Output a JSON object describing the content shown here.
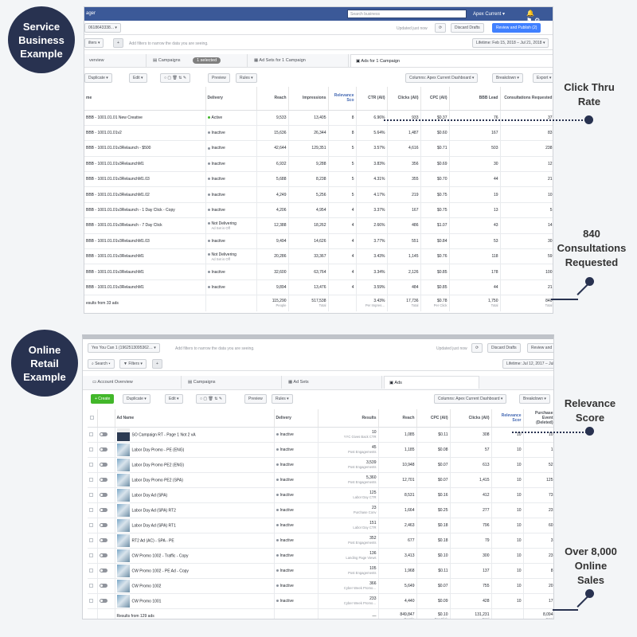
{
  "labels": {
    "service_circle": "Service\nBusiness\nExample",
    "retail_circle": "Online\nRetail\nExample",
    "ctr_callout": "Click Thru\nRate",
    "consult_callout": "840\nConsultations\nRequested",
    "relevance_callout": "Relevance\nScore",
    "sales_callout": "Over 8,000\nOnline\nSales"
  },
  "colors": {
    "navy": "#283250",
    "fb_blue": "#3b5998",
    "accent_blue": "#4080ff",
    "green": "#42b72a"
  },
  "service": {
    "topbar": {
      "app_suffix": "ager",
      "search_placeholder": "Search business",
      "account": "Apex Current ▾",
      "icons": [
        "bell-icon",
        "flag-icon",
        "chat-icon",
        "gear-icon"
      ]
    },
    "toolbar1": {
      "account_id": "0618643338... ▾",
      "updated": "Updated just now",
      "discard": "Discard Drafts",
      "review": "Review and Publish (2)"
    },
    "toolbar2": {
      "filters": "ilters ▾",
      "filter_hint": "Add filters to narrow the data you are seeing.",
      "lifetime": "Lifetime: Feb 15, 2018 – Jul 21, 2018 ▾"
    },
    "tabs": {
      "overview": "verview",
      "campaigns": "Campaigns",
      "selected": "1 selected",
      "adsets": "Ad Sets for 1 Campaign",
      "ads": "Ads for 1 Campaign"
    },
    "toolbar3": {
      "duplicate": "Duplicate ▾",
      "edit": "Edit ▾",
      "preview": "Preview",
      "rules": "Rules ▾",
      "columns": "Columns: Apex Current Dashboard ▾",
      "breakdown": "Breakdown ▾",
      "export": "Export ▾"
    },
    "headers": [
      "me",
      "Delivery",
      "Reach",
      "Impressions",
      "Relevance Sco",
      "CTR (All)",
      "Clicks (All)",
      "CPC (All)",
      "BBB Lead",
      "Consultations Requested"
    ],
    "rows": [
      [
        "BBB - 1001.01.01 New Creative",
        "Active",
        "9,533",
        "13,405",
        "8",
        "6.96%",
        "933",
        "$0.37",
        "76",
        "37"
      ],
      [
        "BBB - 1001.01.01v2",
        "Inactive",
        "15,636",
        "26,344",
        "8",
        "5.64%",
        "1,487",
        "$0.60",
        "167",
        "83"
      ],
      [
        "BBB - 1001.01.01v3Relaunch - $500",
        "Inactive",
        "42,644",
        "129,351",
        "5",
        "3.57%",
        "4,616",
        "$0.71",
        "503",
        "238"
      ],
      [
        "BBB - 1001.01.01v3RelaunchM1",
        "Inactive",
        "6,932",
        "9,288",
        "5",
        "3.83%",
        "356",
        "$0.69",
        "30",
        "12"
      ],
      [
        "BBB - 1001.01.01v3RelaunchM1.03",
        "Inactive",
        "5,688",
        "8,238",
        "5",
        "4.31%",
        "355",
        "$0.70",
        "44",
        "21"
      ],
      [
        "BBB - 1001.01.01v3RelaunchM1.02",
        "Inactive",
        "4,249",
        "5,256",
        "5",
        "4.17%",
        "219",
        "$0.75",
        "19",
        "10"
      ],
      [
        "BBB - 1001.01.01v3Relaunch - 1 Day Click - Copy",
        "Inactive",
        "4,206",
        "4,954",
        "4",
        "3.37%",
        "167",
        "$0.75",
        "13",
        "5"
      ],
      [
        "BBB - 1001.01.01v3Relaunch - 7 Day Click",
        "Not Delivering|Ad Set is Off",
        "12,388",
        "18,262",
        "4",
        "2.66%",
        "486",
        "$1.07",
        "43",
        "14"
      ],
      [
        "BBB - 1001.01.01v3RelaunchM1.03",
        "Inactive",
        "9,494",
        "14,626",
        "4",
        "3.77%",
        "551",
        "$0.84",
        "53",
        "30"
      ],
      [
        "BBB - 1001.01.01v3RelaunchM1",
        "Not Delivering|Ad Set is Off",
        "20,286",
        "33,367",
        "4",
        "3.43%",
        "1,145",
        "$0.76",
        "118",
        "59"
      ],
      [
        "BBB - 1001.01.01v3RelaunchM1",
        "Inactive",
        "32,600",
        "63,764",
        "4",
        "3.34%",
        "2,126",
        "$0.85",
        "178",
        "100"
      ],
      [
        "BBB - 1001.01.01v3RelaunchM1",
        "Inactive",
        "9,894",
        "13,476",
        "4",
        "3.59%",
        "484",
        "$0.85",
        "44",
        "21"
      ]
    ],
    "totals": {
      "label": "esults from 33 ads",
      "reach": "115,290",
      "reach_sub": "People",
      "impr": "517,538",
      "impr_sub": "Total",
      "ctr": "3.43%",
      "ctr_sub": "Per Impres…",
      "clicks": "17,736",
      "clicks_sub": "Total",
      "cpc": "$0.78",
      "cpc_sub": "Per Click",
      "lead": "1,750",
      "lead_sub": "Total",
      "consult": "840",
      "consult_sub": "Total"
    }
  },
  "retail": {
    "toolbar1": {
      "account": "Yes You Can 1 (1962513095362… ▾",
      "filter_hint": "Add filters to narrow the data you are seeing.",
      "updated": "Updated just now",
      "discard": "Discard Drafts",
      "review": "Review and"
    },
    "toolbar2": {
      "search": "Search ▾",
      "filters": "Filters ▾",
      "lifetime": "Lifetime: Jul 12, 2017 – Jul"
    },
    "tabs": {
      "overview": "Account Overview",
      "campaigns": "Campaigns",
      "adsets": "Ad Sets",
      "ads": "Ads"
    },
    "toolbar3": {
      "create": "+ Create",
      "duplicate": "Duplicate ▾",
      "edit": "Edit ▾",
      "preview": "Preview",
      "rules": "Rules ▾",
      "columns": "Columns: Apex Current Dashboard ▾",
      "breakdown": "Breakdown ▾"
    },
    "headers": [
      "Ad Name",
      "Delivery",
      "Results",
      "Reach",
      "CPC (All)",
      "Clicks (All)",
      "Relevance Scor",
      "Purchase Event (Deleted)"
    ],
    "rows": [
      [
        "SO Campaign RT - Page 1 Not 2 vA",
        "Inactive",
        "10|YYC Gives Back CTR",
        "1,085",
        "$0.11",
        "308",
        "10",
        "10"
      ],
      [
        "Labor Day Promo - PE (ENG)",
        "Inactive",
        "45|Post Engagements",
        "1,185",
        "$0.08",
        "57",
        "10",
        "1"
      ],
      [
        "Labor Day Promo PE2 (ENG)",
        "Inactive",
        "3,539|Post Engagements",
        "10,948",
        "$0.07",
        "613",
        "10",
        "52"
      ],
      [
        "Labor Day Promo PE2 (SPA)",
        "Inactive",
        "5,360|Post Engagements",
        "12,701",
        "$0.07",
        "1,415",
        "10",
        "125"
      ],
      [
        "Labor Day Ad (SPA)",
        "Inactive",
        "125|Labor Day CTR",
        "8,531",
        "$0.16",
        "412",
        "10",
        "73"
      ],
      [
        "Labor Day Ad (SPA) RT2",
        "Inactive",
        "23|Purchase Conv",
        "1,664",
        "$0.25",
        "277",
        "10",
        "23"
      ],
      [
        "Labor Day Ad (SPA) RT1",
        "Inactive",
        "151|Labor Day CTR",
        "2,463",
        "$0.18",
        "796",
        "10",
        "60"
      ],
      [
        "RT2 Ad (AC) - SPA - PE",
        "Inactive",
        "352|Post Engagements",
        "677",
        "$0.18",
        "79",
        "10",
        "3"
      ],
      [
        "CW Promo 1002 - Traffic - Copy",
        "Inactive",
        "136|Landing Page Views",
        "3,413",
        "$0.10",
        "300",
        "10",
        "23"
      ],
      [
        "CW Promo 1002 - PE Ad - Copy",
        "Inactive",
        "105|Post Engagements",
        "1,968",
        "$0.11",
        "137",
        "10",
        "8"
      ],
      [
        "CW Promo 1002",
        "Inactive",
        "366|Cyber Week Promo…",
        "5,649",
        "$0.07",
        "755",
        "10",
        "20"
      ],
      [
        "CW Promo 1001",
        "Inactive",
        "233|Cyber Week Promo…",
        "4,440",
        "$0.09",
        "428",
        "10",
        "17"
      ]
    ],
    "totals": {
      "label": "Results from 129 ads",
      "results": "—",
      "reach": "849,847",
      "reach_sub": "People",
      "cpc": "$0.10",
      "cpc_sub": "Per Click",
      "clicks": "131,231",
      "clicks_sub": "Total",
      "purchase": "8,094",
      "purchase_sub": "Total"
    }
  }
}
